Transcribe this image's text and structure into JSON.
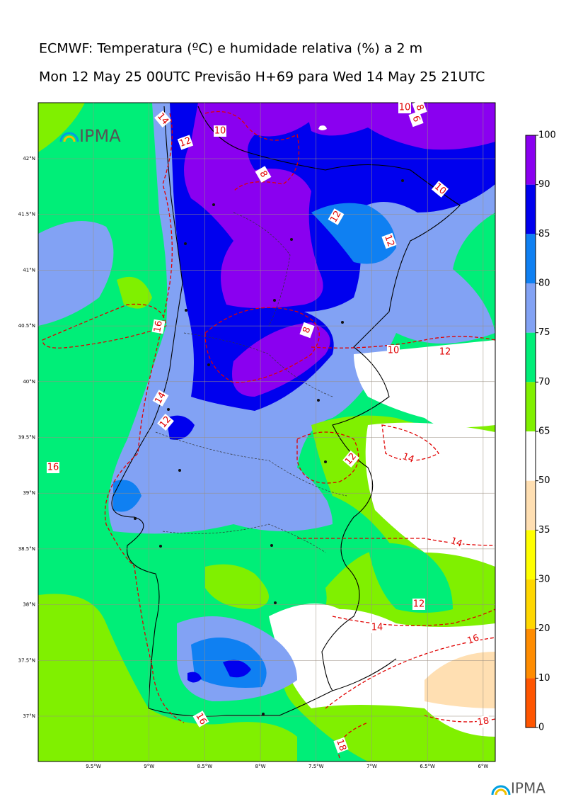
{
  "header": {
    "title_line1": "ECMWF: Temperatura (ºC) e humidade relativa (%) a 2 m",
    "title_line2": "Mon 12 May 25 00UTC Previsão H+69 para Wed 14 May 25 21UTC"
  },
  "map": {
    "logo_text": "IPMA",
    "lat_ticks": [
      {
        "value": 42,
        "label": "42°N"
      },
      {
        "value": 41.5,
        "label": "41.5°N"
      },
      {
        "value": 41,
        "label": "41°N"
      },
      {
        "value": 40.5,
        "label": "40.5°N"
      },
      {
        "value": 40,
        "label": "40°N"
      },
      {
        "value": 39.5,
        "label": "39.5°N"
      },
      {
        "value": 39,
        "label": "39°N"
      },
      {
        "value": 38.5,
        "label": "38.5°N"
      },
      {
        "value": 38,
        "label": "38°N"
      },
      {
        "value": 37.5,
        "label": "37.5°N"
      },
      {
        "value": 37,
        "label": "37°N"
      }
    ],
    "lon_ticks": [
      {
        "value": -9.5,
        "label": "9.5°W"
      },
      {
        "value": -9,
        "label": "9°W"
      },
      {
        "value": -8.5,
        "label": "8.5°W"
      },
      {
        "value": -8,
        "label": "8°W"
      },
      {
        "value": -7.5,
        "label": "7.5°W"
      },
      {
        "value": -7,
        "label": "7°W"
      },
      {
        "value": -6.5,
        "label": "6.5°W"
      },
      {
        "value": -6,
        "label": "6°W"
      }
    ],
    "contour_labels": [
      10,
      8,
      6,
      14,
      12,
      10,
      8,
      10,
      12,
      12,
      16,
      8,
      10,
      12,
      14,
      12,
      16,
      12,
      14,
      14,
      12,
      14,
      16,
      16,
      18,
      18
    ]
  },
  "colorbar": {
    "ticks": [
      100,
      90,
      85,
      80,
      75,
      70,
      65,
      50,
      35,
      30,
      20,
      10,
      0
    ],
    "colors": [
      "#8a00f0",
      "#0000ee",
      "#0f80f2",
      "#82a2f4",
      "#00ee78",
      "#80f000",
      "#ffffff",
      "#ffdfb2",
      "#ffff00",
      "#ffd700",
      "#ff8c00",
      "#ff5500"
    ]
  },
  "footer": {
    "logo_text": "IPMA"
  }
}
